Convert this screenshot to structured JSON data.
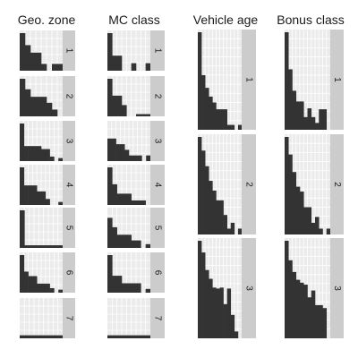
{
  "chart_data": [
    {
      "type": "bar",
      "title": "Geo. zone",
      "colors": {
        "panel": "#ebebeb",
        "grid": "#ffffff",
        "bar": "#333333",
        "strip": "#cccccc"
      },
      "panels": [
        {
          "label": "1",
          "values": [
            1.0,
            0.68,
            0.48,
            0.48,
            0.18,
            0.0,
            0.18,
            0.18
          ]
        },
        {
          "label": "2",
          "values": [
            1.0,
            0.72,
            0.52,
            0.52,
            0.52,
            0.36,
            0.18,
            0.0
          ]
        },
        {
          "label": "3",
          "values": [
            1.0,
            0.4,
            0.4,
            0.4,
            0.4,
            0.32,
            0.32,
            0.12,
            0.0,
            0.08
          ]
        },
        {
          "label": "4",
          "values": [
            1.0,
            0.52,
            0.52,
            0.52,
            0.36,
            0.36,
            0.16,
            0.0,
            0.0,
            0.08
          ]
        },
        {
          "label": "5",
          "values": [
            1.0,
            0.07,
            0.07,
            0.07,
            0.07,
            0.07,
            0.07,
            0.07,
            0.07
          ]
        },
        {
          "label": "6",
          "values": [
            1.0,
            0.56,
            0.44,
            0.44,
            0.24,
            0.24,
            0.24,
            0.12,
            0.0,
            0.08
          ]
        },
        {
          "label": "7",
          "values": [
            0.08,
            0.08,
            0.08,
            0.08,
            0.08,
            0.08,
            0.08,
            0.08,
            0.08
          ]
        }
      ]
    },
    {
      "type": "bar",
      "title": "MC class",
      "colors": {
        "panel": "#ebebeb",
        "grid": "#ffffff",
        "bar": "#333333",
        "strip": "#cccccc"
      },
      "panels": [
        {
          "label": "1",
          "values": [
            1.0,
            0.4,
            0.4,
            0.0,
            0.0,
            0.2,
            0.0,
            0.0,
            0.2
          ]
        },
        {
          "label": "2",
          "values": [
            1.0,
            0.55,
            0.55,
            0.3,
            0.0,
            0.0,
            0.06,
            0.06,
            0.06
          ]
        },
        {
          "label": "3",
          "values": [
            0.6,
            0.6,
            0.45,
            0.45,
            0.3,
            0.15,
            0.15,
            0.15,
            0.0,
            0.15
          ]
        },
        {
          "label": "4",
          "values": [
            1.0,
            0.55,
            0.3,
            0.3,
            0.3,
            0.12,
            0.12,
            0.12,
            0.0
          ]
        },
        {
          "label": "5",
          "values": [
            0.8,
            0.55,
            0.35,
            0.35,
            0.35,
            0.2,
            0.2,
            0.0,
            0.1
          ]
        },
        {
          "label": "6",
          "values": [
            1.0,
            0.45,
            0.45,
            0.25,
            0.25,
            0.25,
            0.25,
            0.0,
            0.1
          ]
        },
        {
          "label": "7",
          "values": [
            0.08,
            0.08,
            0.08,
            0.08,
            0.08,
            0.08,
            0.08,
            0.08,
            0.08
          ]
        }
      ]
    },
    {
      "type": "bar",
      "title": "Vehicle age",
      "colors": {
        "panel": "#ebebeb",
        "grid": "#ffffff",
        "bar": "#333333",
        "strip": "#cccccc"
      },
      "panels": [
        {
          "label": "1",
          "values": [
            1.0,
            0.56,
            0.43,
            0.34,
            0.28,
            0.21,
            0.21,
            0.21,
            0.05,
            0.05,
            0.0,
            0.05
          ]
        },
        {
          "label": "2",
          "values": [
            1.0,
            0.86,
            0.7,
            0.55,
            0.45,
            0.35,
            0.35,
            0.2,
            0.06,
            0.12,
            0.0,
            0.06
          ]
        },
        {
          "label": "3",
          "values": [
            1.0,
            0.88,
            0.7,
            0.61,
            0.52,
            0.51,
            0.52,
            0.35,
            0.51,
            0.24,
            0.07,
            0.0
          ]
        }
      ]
    },
    {
      "type": "bar",
      "title": "Bonus class",
      "colors": {
        "panel": "#ebebeb",
        "grid": "#ffffff",
        "bar": "#333333",
        "strip": "#cccccc"
      },
      "panels": [
        {
          "label": "1",
          "values": [
            1.0,
            0.62,
            0.4,
            0.29,
            0.29,
            0.13,
            0.22,
            0.13,
            0.07,
            0.21,
            0.21,
            0.0
          ]
        },
        {
          "label": "2",
          "values": [
            1.0,
            0.82,
            0.64,
            0.49,
            0.44,
            0.28,
            0.28,
            0.12,
            0.18,
            0.06,
            0.0,
            0.06
          ]
        },
        {
          "label": "3",
          "values": [
            1.0,
            0.8,
            0.68,
            0.6,
            0.57,
            0.55,
            0.42,
            0.49,
            0.34,
            0.34,
            0.31,
            0.0
          ]
        }
      ]
    }
  ]
}
